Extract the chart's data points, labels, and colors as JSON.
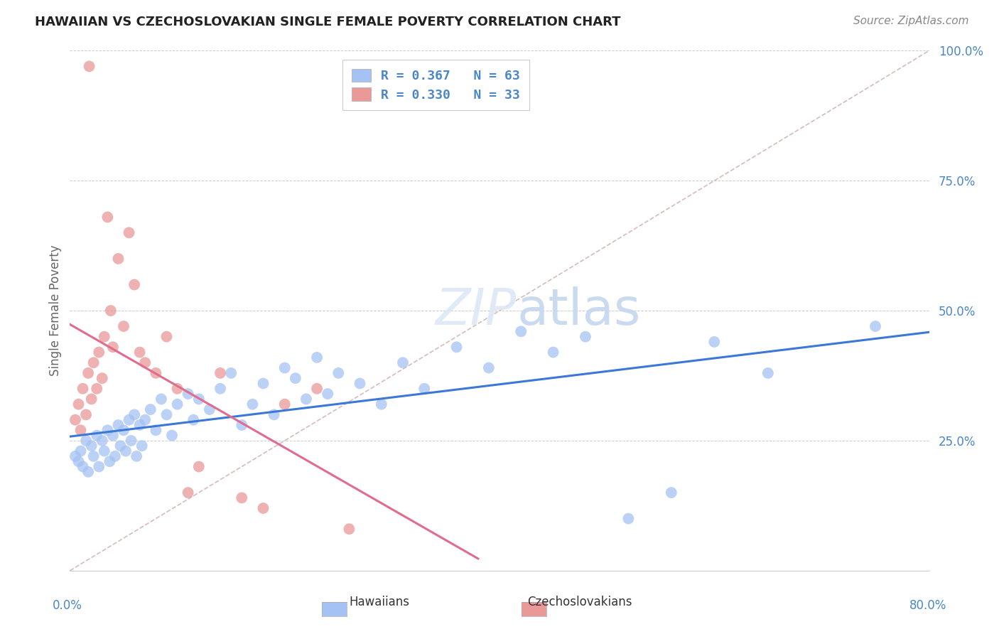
{
  "title": "HAWAIIAN VS CZECHOSLOVAKIAN SINGLE FEMALE POVERTY CORRELATION CHART",
  "source": "Source: ZipAtlas.com",
  "ylabel": "Single Female Poverty",
  "watermark": "ZIPatlas",
  "xlim": [
    0.0,
    0.8
  ],
  "ylim": [
    0.0,
    1.0
  ],
  "yticks": [
    0.0,
    0.25,
    0.5,
    0.75,
    1.0
  ],
  "ytick_labels": [
    "",
    "25.0%",
    "50.0%",
    "75.0%",
    "100.0%"
  ],
  "hawaiian_color": "#a4c2f4",
  "czech_color": "#ea9999",
  "hawaiian_line_color": "#3c78d8",
  "czech_line_color": "#e06c8e",
  "diagonal_color": "#ccaaaa",
  "background_color": "#ffffff",
  "hawaiian_x": [
    0.005,
    0.008,
    0.01,
    0.012,
    0.015,
    0.017,
    0.02,
    0.022,
    0.025,
    0.027,
    0.03,
    0.032,
    0.035,
    0.037,
    0.04,
    0.042,
    0.045,
    0.047,
    0.05,
    0.052,
    0.055,
    0.057,
    0.06,
    0.062,
    0.065,
    0.067,
    0.07,
    0.075,
    0.08,
    0.085,
    0.09,
    0.095,
    0.1,
    0.11,
    0.115,
    0.12,
    0.13,
    0.14,
    0.15,
    0.16,
    0.17,
    0.18,
    0.19,
    0.2,
    0.21,
    0.22,
    0.23,
    0.24,
    0.25,
    0.27,
    0.29,
    0.31,
    0.33,
    0.36,
    0.39,
    0.42,
    0.45,
    0.48,
    0.52,
    0.56,
    0.6,
    0.65,
    0.75
  ],
  "hawaiian_y": [
    0.22,
    0.21,
    0.23,
    0.2,
    0.25,
    0.19,
    0.24,
    0.22,
    0.26,
    0.2,
    0.25,
    0.23,
    0.27,
    0.21,
    0.26,
    0.22,
    0.28,
    0.24,
    0.27,
    0.23,
    0.29,
    0.25,
    0.3,
    0.22,
    0.28,
    0.24,
    0.29,
    0.31,
    0.27,
    0.33,
    0.3,
    0.26,
    0.32,
    0.34,
    0.29,
    0.33,
    0.31,
    0.35,
    0.38,
    0.28,
    0.32,
    0.36,
    0.3,
    0.39,
    0.37,
    0.33,
    0.41,
    0.34,
    0.38,
    0.36,
    0.32,
    0.4,
    0.35,
    0.43,
    0.39,
    0.46,
    0.42,
    0.45,
    0.1,
    0.15,
    0.44,
    0.38,
    0.47
  ],
  "czech_x": [
    0.005,
    0.008,
    0.01,
    0.012,
    0.015,
    0.017,
    0.018,
    0.02,
    0.022,
    0.025,
    0.027,
    0.03,
    0.032,
    0.035,
    0.038,
    0.04,
    0.045,
    0.05,
    0.055,
    0.06,
    0.065,
    0.07,
    0.08,
    0.09,
    0.1,
    0.11,
    0.12,
    0.14,
    0.16,
    0.18,
    0.2,
    0.23,
    0.26
  ],
  "czech_y": [
    0.29,
    0.32,
    0.27,
    0.35,
    0.3,
    0.38,
    0.97,
    0.33,
    0.4,
    0.35,
    0.42,
    0.37,
    0.45,
    0.68,
    0.5,
    0.43,
    0.6,
    0.47,
    0.65,
    0.55,
    0.42,
    0.4,
    0.38,
    0.45,
    0.35,
    0.15,
    0.2,
    0.38,
    0.14,
    0.12,
    0.32,
    0.35,
    0.08
  ]
}
